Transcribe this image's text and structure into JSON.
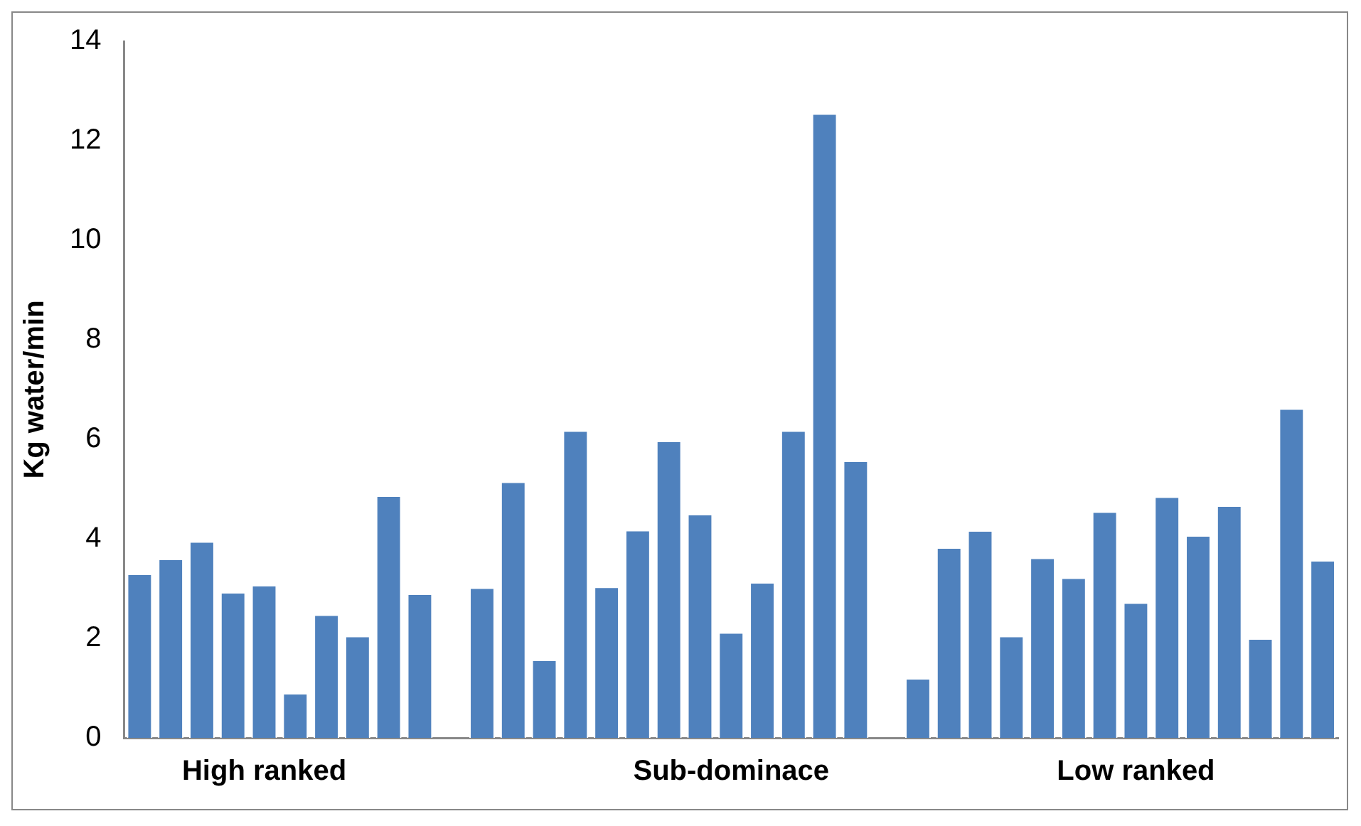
{
  "chart_data": {
    "type": "bar",
    "ylabel": "Kg water/min",
    "categories": [
      null,
      null,
      null,
      null,
      "High ranked",
      null,
      null,
      null,
      null,
      null,
      null,
      null,
      null,
      null,
      null,
      null,
      null,
      null,
      null,
      "Sub-dominace",
      null,
      null,
      null,
      null,
      null,
      null,
      null,
      null,
      null,
      null,
      null,
      null,
      "Low ranked",
      null,
      null,
      null,
      null,
      null,
      null
    ],
    "series": [
      {
        "color": "#4f81bd",
        "values": [
          3.3,
          3.6,
          3.95,
          2.93,
          3.07,
          0.9,
          2.48,
          2.05,
          4.87,
          2.9,
          null,
          3.02,
          5.15,
          1.57,
          6.18,
          3.04,
          4.18,
          5.97,
          4.5,
          2.12,
          3.13,
          6.18,
          12.55,
          5.57,
          null,
          1.2,
          3.83,
          4.17,
          2.05,
          3.62,
          3.22,
          4.55,
          2.72,
          4.85,
          4.07,
          4.67,
          2.0,
          6.62,
          3.57
        ]
      }
    ],
    "ylim": [
      0,
      14
    ],
    "yticks": [
      0,
      2,
      4,
      6,
      8,
      10,
      12,
      14
    ],
    "grid": false,
    "legend": false
  }
}
